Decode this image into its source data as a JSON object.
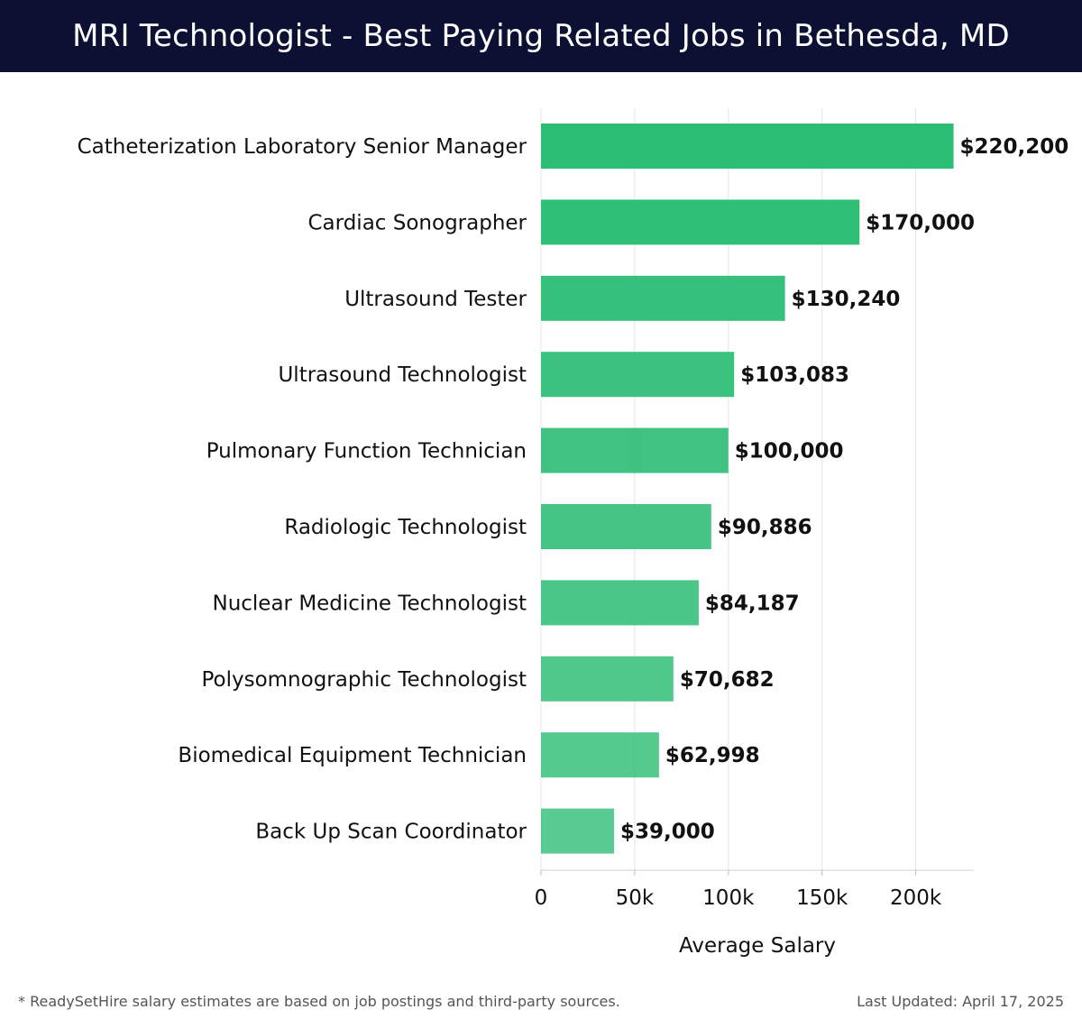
{
  "header": {
    "title": "MRI Technologist - Best Paying Related Jobs in Bethesda, MD"
  },
  "chart_data": {
    "type": "bar",
    "orientation": "horizontal",
    "title": "MRI Technologist - Best Paying Related Jobs in Bethesda, MD",
    "xlabel": "Average Salary",
    "ylabel": "",
    "xlim": [
      0,
      231000
    ],
    "xticks": [
      0,
      50000,
      100000,
      150000,
      200000
    ],
    "xtick_labels": [
      "0",
      "50k",
      "100k",
      "150k",
      "200k"
    ],
    "grid": true,
    "categories": [
      "Catheterization Laboratory Senior Manager",
      "Cardiac Sonographer",
      "Ultrasound Tester",
      "Ultrasound Technologist",
      "Pulmonary Function Technician",
      "Radiologic Technologist",
      "Nuclear Medicine Technologist",
      "Polysomnographic Technologist",
      "Biomedical Equipment Technician",
      "Back Up Scan Coordinator"
    ],
    "values": [
      220200,
      170000,
      130240,
      103083,
      100000,
      90886,
      84187,
      70682,
      62998,
      39000
    ],
    "value_labels": [
      "$220,200",
      "$170,000",
      "$130,240",
      "$103,083",
      "$100,000",
      "$90,886",
      "$84,187",
      "$70,682",
      "$62,998",
      "$39,000"
    ],
    "bar_color": "#2bbd74"
  },
  "footer": {
    "note": "* ReadySetHire salary estimates are based on job postings and third-party sources.",
    "updated": "Last Updated: April 17, 2025"
  }
}
